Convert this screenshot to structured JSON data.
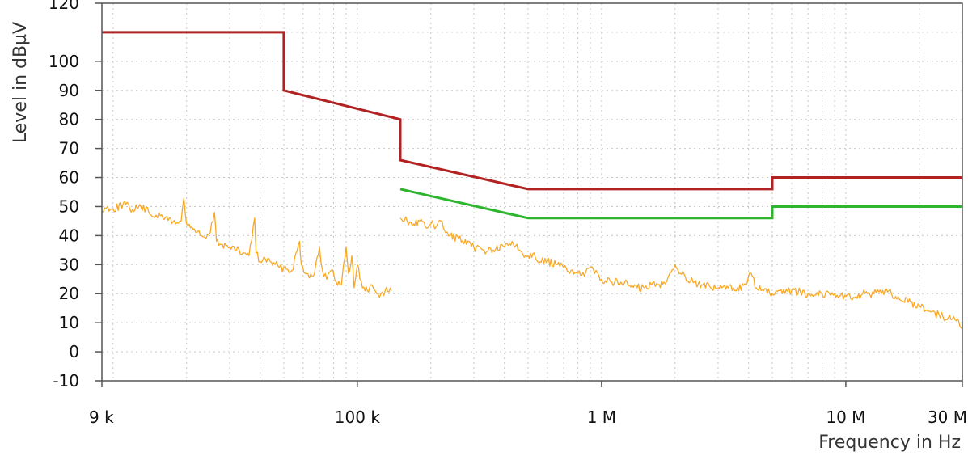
{
  "chart_data": {
    "type": "line",
    "title": "",
    "xlabel": "Frequency in Hz",
    "ylabel": "Level in  dBµV",
    "xscale": "log",
    "xlim": [
      9000,
      30000000
    ],
    "ylim": [
      -10,
      120
    ],
    "grid": true,
    "legend": "none",
    "x_ticks": [
      {
        "value": 9000,
        "label": "9 k"
      },
      {
        "value": 100000,
        "label": "100 k"
      },
      {
        "value": 1000000,
        "label": "1 M"
      },
      {
        "value": 10000000,
        "label": "10 M"
      },
      {
        "value": 30000000,
        "label": "30 M"
      }
    ],
    "y_ticks": [
      {
        "value": -10,
        "label": "-10"
      },
      {
        "value": 0,
        "label": "0"
      },
      {
        "value": 10,
        "label": "10"
      },
      {
        "value": 20,
        "label": "20"
      },
      {
        "value": 30,
        "label": "30"
      },
      {
        "value": 40,
        "label": "40"
      },
      {
        "value": 50,
        "label": "50"
      },
      {
        "value": 60,
        "label": "60"
      },
      {
        "value": 70,
        "label": "70"
      },
      {
        "value": 80,
        "label": "80"
      },
      {
        "value": 90,
        "label": "90"
      },
      {
        "value": 100,
        "label": "100"
      },
      {
        "value": 120,
        "label": "120"
      }
    ],
    "series": [
      {
        "color": "#b22222",
        "points": [
          [
            9000,
            110
          ],
          [
            50000,
            110
          ],
          [
            50000,
            90
          ],
          [
            150000,
            80
          ],
          [
            150000,
            66
          ],
          [
            500000,
            56
          ],
          [
            5000000,
            56
          ],
          [
            5000000,
            60
          ],
          [
            30000000,
            60
          ]
        ]
      },
      {
        "color": "#2db52d",
        "points": [
          [
            150000,
            56
          ],
          [
            500000,
            46
          ],
          [
            5000000,
            46
          ],
          [
            5000000,
            50
          ],
          [
            30000000,
            50
          ]
        ]
      },
      {
        "color": "#f9a825",
        "points": [
          [
            9000,
            48
          ],
          [
            9500,
            50
          ],
          [
            10000,
            49
          ],
          [
            11000,
            51
          ],
          [
            12000,
            49
          ],
          [
            13000,
            50
          ],
          [
            14000,
            48
          ],
          [
            15000,
            47
          ],
          [
            16000,
            46
          ],
          [
            17000,
            46
          ],
          [
            18000,
            44
          ],
          [
            19000,
            45
          ],
          [
            19500,
            53
          ],
          [
            20000,
            44
          ],
          [
            21000,
            43
          ],
          [
            22000,
            41
          ],
          [
            23000,
            40
          ],
          [
            24000,
            39
          ],
          [
            25000,
            41
          ],
          [
            26000,
            48
          ],
          [
            26500,
            38
          ],
          [
            28000,
            37
          ],
          [
            30000,
            36
          ],
          [
            32000,
            35
          ],
          [
            34000,
            34
          ],
          [
            36000,
            33
          ],
          [
            38000,
            46
          ],
          [
            38500,
            34
          ],
          [
            40000,
            31
          ],
          [
            42000,
            32
          ],
          [
            44000,
            31
          ],
          [
            46000,
            30
          ],
          [
            48000,
            29
          ],
          [
            50000,
            29
          ],
          [
            54000,
            28
          ],
          [
            58000,
            38
          ],
          [
            59000,
            30
          ],
          [
            62000,
            27
          ],
          [
            66000,
            26
          ],
          [
            70000,
            36
          ],
          [
            72000,
            28
          ],
          [
            75000,
            25
          ],
          [
            78000,
            28
          ],
          [
            82000,
            24
          ],
          [
            86000,
            23
          ],
          [
            90000,
            36
          ],
          [
            92000,
            27
          ],
          [
            95000,
            33
          ],
          [
            97000,
            22
          ],
          [
            100000,
            30
          ],
          [
            105000,
            22
          ],
          [
            110000,
            21
          ],
          [
            115000,
            23
          ],
          [
            120000,
            20
          ],
          [
            125000,
            20
          ],
          [
            130000,
            21
          ],
          [
            138000,
            21
          ],
          [
            150000,
            46
          ],
          [
            160000,
            45
          ],
          [
            170000,
            44
          ],
          [
            180000,
            45
          ],
          [
            190000,
            43
          ],
          [
            200000,
            44
          ],
          [
            210000,
            43
          ],
          [
            220000,
            45
          ],
          [
            230000,
            41
          ],
          [
            240000,
            40
          ],
          [
            260000,
            39
          ],
          [
            280000,
            37
          ],
          [
            300000,
            36
          ],
          [
            330000,
            35
          ],
          [
            360000,
            35
          ],
          [
            400000,
            36
          ],
          [
            430000,
            38
          ],
          [
            460000,
            35
          ],
          [
            500000,
            33
          ],
          [
            530000,
            34
          ],
          [
            560000,
            31
          ],
          [
            600000,
            31
          ],
          [
            650000,
            30
          ],
          [
            700000,
            29
          ],
          [
            750000,
            28
          ],
          [
            800000,
            27
          ],
          [
            850000,
            26
          ],
          [
            900000,
            29
          ],
          [
            950000,
            28
          ],
          [
            1000000,
            25
          ],
          [
            1100000,
            24
          ],
          [
            1200000,
            24
          ],
          [
            1300000,
            23
          ],
          [
            1400000,
            22
          ],
          [
            1500000,
            22
          ],
          [
            1600000,
            23
          ],
          [
            1700000,
            23
          ],
          [
            1800000,
            24
          ],
          [
            1900000,
            27
          ],
          [
            2000000,
            30
          ],
          [
            2100000,
            27
          ],
          [
            2200000,
            26
          ],
          [
            2400000,
            24
          ],
          [
            2600000,
            23
          ],
          [
            2800000,
            22
          ],
          [
            3000000,
            22
          ],
          [
            3300000,
            22
          ],
          [
            3600000,
            22
          ],
          [
            3900000,
            23
          ],
          [
            4100000,
            27
          ],
          [
            4300000,
            22
          ],
          [
            4600000,
            21
          ],
          [
            5000000,
            20
          ],
          [
            5500000,
            20
          ],
          [
            6000000,
            21
          ],
          [
            7000000,
            20
          ],
          [
            8000000,
            20
          ],
          [
            9000000,
            20
          ],
          [
            10000000,
            19
          ],
          [
            11000000,
            19
          ],
          [
            12000000,
            20
          ],
          [
            13000000,
            20
          ],
          [
            14000000,
            20
          ],
          [
            15000000,
            21
          ],
          [
            16000000,
            19
          ],
          [
            18000000,
            17
          ],
          [
            20000000,
            16
          ],
          [
            22000000,
            14
          ],
          [
            25000000,
            12
          ],
          [
            28000000,
            11
          ],
          [
            30000000,
            9
          ]
        ]
      }
    ]
  }
}
